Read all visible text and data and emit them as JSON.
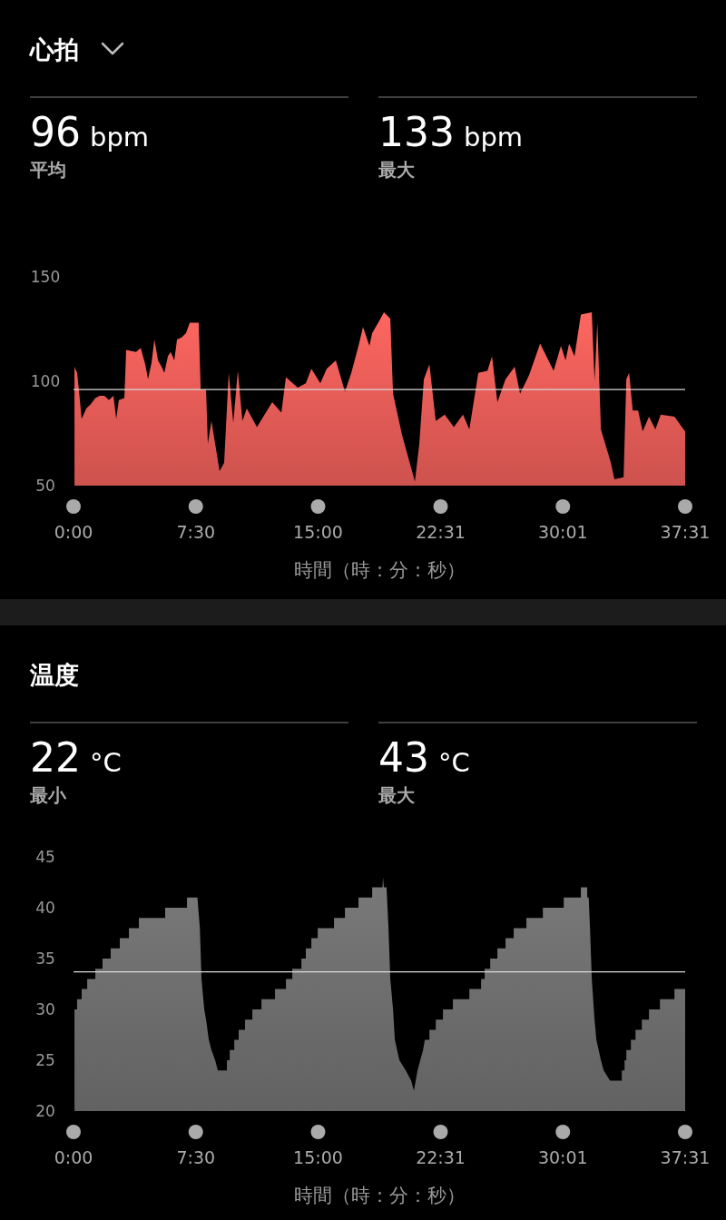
{
  "chart_data": [
    {
      "type": "area",
      "title": "心拍",
      "xlabel": "時間（時：分：秒）",
      "annotations": [
        "96 bpm",
        "平均",
        "133 bpm",
        "最大"
      ],
      "x": [
        0.06,
        0.22,
        0.33,
        0.5,
        0.78,
        1.06,
        1.34,
        1.61,
        1.89,
        2.17,
        2.45,
        2.62,
        2.78,
        3.12,
        3.23,
        3.84,
        4.12,
        4.4,
        4.57,
        4.79,
        4.96,
        5.18,
        5.4,
        5.57,
        5.79,
        5.96,
        6.18,
        6.35,
        6.63,
        6.9,
        7.13,
        7.68,
        7.8,
        8.13,
        8.24,
        8.46,
        8.96,
        9.24,
        9.52,
        9.8,
        10.08,
        10.36,
        10.63,
        11.25,
        12.19,
        12.75,
        13.03,
        13.75,
        14.25,
        14.59,
        15.14,
        15.53,
        16.09,
        16.65,
        17.04,
        17.48,
        17.76,
        18.15,
        18.32,
        18.76,
        19.04,
        19.43,
        19.6,
        20.16,
        20.94,
        21.21,
        21.49,
        21.83,
        22.22,
        22.77,
        23.33,
        23.89,
        24.28,
        24.83,
        25.39,
        25.67,
        26.0,
        26.5,
        27.06,
        27.39,
        27.95,
        28.62,
        29.45,
        29.9,
        30.18,
        30.4,
        30.73,
        31.12,
        31.79,
        31.96,
        32.13,
        32.35,
        32.96,
        33.18,
        33.74,
        33.91,
        34.08,
        34.3,
        34.63,
        34.91,
        35.3,
        35.69,
        36.02,
        36.86,
        37.42,
        37.517
      ],
      "series": [
        {
          "color": "#e05a55",
          "values": [
            107,
            104,
            96,
            82,
            87,
            89,
            92,
            93,
            93,
            91,
            93,
            82,
            91,
            92,
            115,
            114,
            116,
            108,
            101,
            109,
            120,
            110,
            107,
            104,
            112,
            114,
            110,
            120,
            121,
            123,
            128,
            128,
            96,
            96,
            70,
            81,
            57,
            61,
            104,
            80,
            105,
            81,
            87,
            78,
            90,
            85,
            102,
            97,
            99,
            106,
            99,
            106,
            110,
            95,
            104,
            117,
            126,
            117,
            123,
            129,
            133,
            130,
            94,
            74,
            52,
            70,
            101,
            108,
            81,
            84,
            78,
            84,
            77,
            104,
            105,
            112,
            90,
            101,
            107,
            94,
            103,
            118,
            105,
            117,
            110,
            118,
            112,
            132,
            133,
            100,
            128,
            77,
            61,
            53,
            54,
            101,
            104,
            86,
            86,
            76,
            83,
            77,
            84,
            83,
            77,
            76
          ]
        }
      ],
      "xlim": [
        0,
        37.517
      ],
      "xticks": [
        {
          "value": 0,
          "label": "0:00"
        },
        {
          "value": 7.5,
          "label": "7:30"
        },
        {
          "value": 15,
          "label": "15:00"
        },
        {
          "value": 22.517,
          "label": "22:31"
        },
        {
          "value": 30.017,
          "label": "30:01"
        },
        {
          "value": 37.517,
          "label": "37:31"
        }
      ],
      "ylim": [
        50,
        150
      ],
      "yticks": [
        50,
        100,
        150
      ],
      "ref_lines": [
        {
          "axis": "y",
          "value": 96,
          "color": "#d9d9d9"
        }
      ]
    },
    {
      "type": "area",
      "title": "温度",
      "xlabel": "時間（時：分：秒）",
      "annotations": [
        "22 °C",
        "最小",
        "43 °C",
        "最大"
      ],
      "x": [
        0.06,
        0.22,
        0.22,
        0.5,
        0.5,
        0.84,
        0.84,
        1.34,
        1.34,
        1.78,
        1.78,
        2.28,
        2.28,
        2.84,
        2.84,
        3.4,
        3.4,
        4.01,
        4.01,
        5.62,
        5.62,
        6.96,
        6.96,
        7.6,
        7.75,
        7.85,
        8.02,
        8.13,
        8.3,
        8.46,
        8.69,
        8.85,
        9.41,
        9.41,
        9.58,
        9.58,
        9.86,
        9.86,
        10.13,
        10.13,
        10.52,
        10.52,
        10.97,
        10.97,
        11.53,
        11.53,
        12.36,
        12.36,
        13.03,
        13.03,
        13.42,
        13.42,
        13.98,
        13.98,
        14.25,
        14.25,
        14.59,
        14.59,
        14.98,
        14.98,
        15.98,
        15.98,
        16.65,
        16.65,
        17.48,
        17.48,
        18.32,
        18.32,
        18.95,
        18.99,
        19.03,
        19.2,
        19.32,
        19.43,
        19.6,
        19.71,
        19.99,
        20.38,
        20.71,
        20.88,
        20.99,
        21.1,
        21.27,
        21.44,
        21.55,
        21.83,
        21.83,
        22.22,
        22.22,
        22.66,
        22.66,
        23.27,
        23.27,
        24.28,
        24.28,
        25.0,
        25.0,
        25.22,
        25.22,
        25.56,
        25.56,
        26.0,
        26.0,
        26.5,
        26.5,
        27.0,
        27.0,
        27.78,
        27.78,
        28.79,
        28.79,
        30.07,
        30.07,
        31.12,
        31.12,
        31.51,
        31.51,
        31.6,
        31.68,
        31.79,
        31.96,
        32.07,
        32.35,
        32.52,
        32.91,
        33.63,
        33.63,
        33.8,
        33.8,
        33.91,
        33.91,
        34.19,
        34.19,
        34.47,
        34.47,
        34.86,
        34.86,
        35.3,
        35.3,
        35.97,
        35.97,
        36.86,
        36.86,
        37.517
      ],
      "series": [
        {
          "color": "#6b6b6b",
          "values": [
            30,
            30,
            31,
            31,
            32,
            32,
            33,
            33,
            34,
            34,
            35,
            35,
            36,
            36,
            37,
            37,
            38,
            38,
            39,
            39,
            40,
            40,
            41,
            41,
            38,
            33,
            30,
            29,
            27,
            26,
            25,
            24,
            24,
            25,
            25,
            26,
            26,
            27,
            27,
            28,
            28,
            29,
            29,
            30,
            30,
            31,
            31,
            32,
            32,
            33,
            33,
            34,
            34,
            35,
            35,
            36,
            36,
            37,
            37,
            38,
            38,
            39,
            39,
            40,
            40,
            41,
            41,
            42,
            42,
            43,
            42,
            42,
            38,
            33,
            30,
            27,
            25,
            24,
            23,
            22,
            23,
            24,
            25,
            26,
            27,
            27,
            28,
            28,
            29,
            29,
            30,
            30,
            31,
            31,
            32,
            32,
            33,
            33,
            34,
            34,
            35,
            35,
            36,
            36,
            37,
            37,
            38,
            38,
            39,
            39,
            40,
            40,
            41,
            41,
            42,
            42,
            41,
            41,
            38,
            33,
            29,
            27,
            25,
            24,
            23,
            23,
            24,
            24,
            25,
            25,
            26,
            26,
            27,
            27,
            28,
            28,
            29,
            29,
            30,
            30,
            31,
            31,
            32,
            32
          ]
        }
      ],
      "xlim": [
        0,
        37.517
      ],
      "xticks": [
        {
          "value": 0,
          "label": "0:00"
        },
        {
          "value": 7.5,
          "label": "7:30"
        },
        {
          "value": 15,
          "label": "15:00"
        },
        {
          "value": 22.517,
          "label": "22:31"
        },
        {
          "value": 30.017,
          "label": "30:01"
        },
        {
          "value": 37.517,
          "label": "37:31"
        }
      ],
      "ylim": [
        20,
        45
      ],
      "yticks": [
        20,
        25,
        30,
        35,
        40,
        45
      ],
      "ref_lines": [
        {
          "axis": "y",
          "value": 33.7,
          "color": "#d9d9d9"
        }
      ]
    }
  ]
}
